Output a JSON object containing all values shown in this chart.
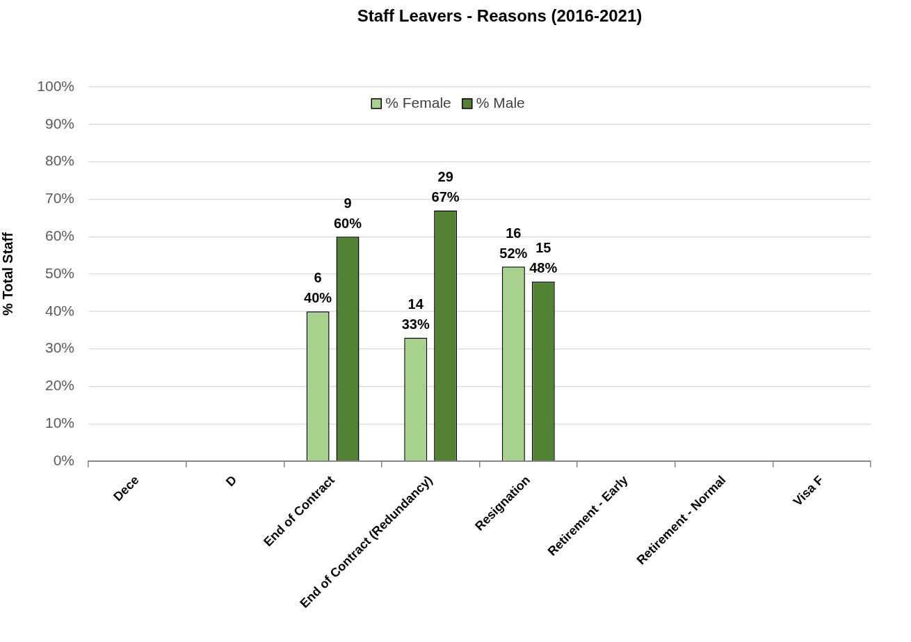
{
  "chart_data": {
    "type": "bar",
    "title": "Staff Leavers - Reasons (2016-2021)",
    "ylabel": "% Total Staff",
    "categories": [
      "Dece",
      "D",
      "End of Contract",
      "End of Contract (Redundancy)",
      "Resignation",
      "Retirement - Early",
      "Retirement - Normal",
      "Visa F"
    ],
    "series": [
      {
        "name": "% Female",
        "color": "#a9d18e",
        "values": [
          null,
          null,
          40,
          33,
          52,
          null,
          null,
          null
        ],
        "value_labels": [
          null,
          null,
          "6\n40%",
          "14\n33%",
          "16\n52%",
          null,
          null,
          null
        ]
      },
      {
        "name": "% Male",
        "color": "#548235",
        "values": [
          null,
          null,
          60,
          67,
          48,
          null,
          null,
          null
        ],
        "value_labels": [
          null,
          null,
          "9\n60%",
          "29\n67%",
          "15\n48%",
          null,
          null,
          null
        ]
      }
    ],
    "ylim": [
      0,
      100
    ],
    "yticks": [
      {
        "value": 0,
        "label": "0%"
      },
      {
        "value": 10,
        "label": "10%"
      },
      {
        "value": 20,
        "label": "20%"
      },
      {
        "value": 30,
        "label": "30%"
      },
      {
        "value": 40,
        "label": "40%"
      },
      {
        "value": 50,
        "label": "50%"
      },
      {
        "value": 60,
        "label": "60%"
      },
      {
        "value": 70,
        "label": "70%"
      },
      {
        "value": 80,
        "label": "80%"
      },
      {
        "value": 90,
        "label": "90%"
      },
      {
        "value": 100,
        "label": "100%"
      }
    ],
    "grid": "y",
    "legend": "top"
  }
}
